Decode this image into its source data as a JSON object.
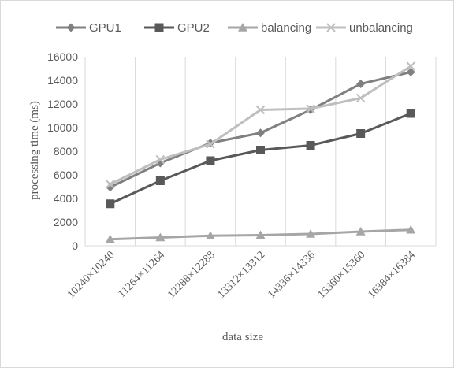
{
  "chart_data": {
    "type": "line",
    "xlabel": "data size",
    "ylabel": "processing time (ms)",
    "categories": [
      "10240×10240",
      "11264×11264",
      "12288×12288",
      "13312×13312",
      "14336×14336",
      "15360×15360",
      "16384×16384"
    ],
    "ylim": [
      0,
      16000
    ],
    "yticks": [
      "0",
      "2000",
      "4000",
      "6000",
      "8000",
      "10000",
      "12000",
      "14000",
      "16000"
    ],
    "grid": "vertical category lines",
    "legend_position": "top",
    "series": [
      {
        "name": "GPU1",
        "marker": "diamond",
        "color": "#808080",
        "values": [
          4950,
          7000,
          8700,
          9550,
          11500,
          13700,
          14700
        ]
      },
      {
        "name": "GPU2",
        "marker": "square",
        "color": "#595959",
        "values": [
          3550,
          5500,
          7200,
          8100,
          8500,
          9500,
          11200
        ]
      },
      {
        "name": "balancing",
        "marker": "triangle",
        "color": "#a6a6a6",
        "values": [
          550,
          700,
          850,
          900,
          1000,
          1200,
          1350
        ]
      },
      {
        "name": "unbalancing",
        "marker": "x",
        "color": "#bfbfbf",
        "values": [
          5200,
          7300,
          8600,
          11500,
          11600,
          12500,
          15200
        ]
      }
    ]
  }
}
